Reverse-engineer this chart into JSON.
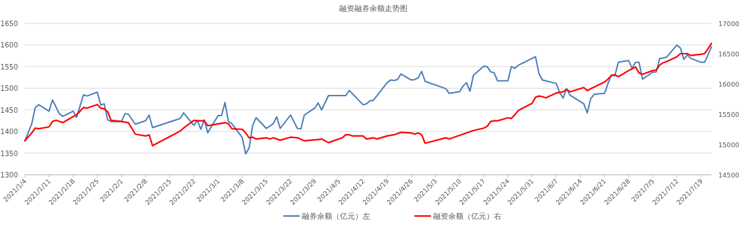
{
  "chart_data": {
    "type": "line",
    "title": "融资融券余额走势图",
    "xlim": [
      "2021-01-04",
      "2021-07-22"
    ],
    "xticks": [
      {
        "value": "2021-01-04",
        "label": "2021/1/4"
      },
      {
        "value": "2021-01-11",
        "label": "2021/1/11"
      },
      {
        "value": "2021-01-18",
        "label": "2021/1/18"
      },
      {
        "value": "2021-01-25",
        "label": "2021/1/25"
      },
      {
        "value": "2021-02-01",
        "label": "2021/2/1"
      },
      {
        "value": "2021-02-08",
        "label": "2021/2/8"
      },
      {
        "value": "2021-02-15",
        "label": "2021/2/15"
      },
      {
        "value": "2021-02-22",
        "label": "2021/2/22"
      },
      {
        "value": "2021-03-01",
        "label": "2021/3/1"
      },
      {
        "value": "2021-03-08",
        "label": "2021/3/8"
      },
      {
        "value": "2021-03-15",
        "label": "2021/3/15"
      },
      {
        "value": "2021-03-22",
        "label": "2021/3/22"
      },
      {
        "value": "2021-03-29",
        "label": "2021/3/29"
      },
      {
        "value": "2021-04-05",
        "label": "2021/4/5"
      },
      {
        "value": "2021-04-12",
        "label": "2021/4/12"
      },
      {
        "value": "2021-04-19",
        "label": "2021/4/19"
      },
      {
        "value": "2021-04-26",
        "label": "2021/4/26"
      },
      {
        "value": "2021-05-03",
        "label": "2021/5/3"
      },
      {
        "value": "2021-05-10",
        "label": "2021/5/10"
      },
      {
        "value": "2021-05-17",
        "label": "2021/5/17"
      },
      {
        "value": "2021-05-24",
        "label": "2021/5/24"
      },
      {
        "value": "2021-05-31",
        "label": "2021/5/31"
      },
      {
        "value": "2021-06-07",
        "label": "2021/6/7"
      },
      {
        "value": "2021-06-14",
        "label": "2021/6/14"
      },
      {
        "value": "2021-06-21",
        "label": "2021/6/21"
      },
      {
        "value": "2021-06-28",
        "label": "2021/6/28"
      },
      {
        "value": "2021-07-05",
        "label": "2021/7/5"
      },
      {
        "value": "2021-07-12",
        "label": "2021/7/12"
      },
      {
        "value": "2021-07-19",
        "label": "2021/7/19"
      }
    ],
    "ylim": [
      1300,
      1650
    ],
    "yticks": [
      1300,
      1350,
      1400,
      1450,
      1500,
      1550,
      1600,
      1650
    ],
    "y2lim": [
      14500,
      17000
    ],
    "y2ticks": [
      14500,
      15000,
      15500,
      16000,
      16500,
      17000
    ],
    "grid": "y",
    "legend": "bottom",
    "series": [
      {
        "name": "融券余额（亿元）左",
        "color": "#4a7ebb",
        "axis": "y",
        "x": [
          "2021-01-04",
          "2021-01-06",
          "2021-01-07",
          "2021-01-08",
          "2021-01-11",
          "2021-01-12",
          "2021-01-14",
          "2021-01-15",
          "2021-01-18",
          "2021-01-19",
          "2021-01-21",
          "2021-01-22",
          "2021-01-25",
          "2021-01-26",
          "2021-01-27",
          "2021-01-28",
          "2021-01-29",
          "2021-02-01",
          "2021-02-02",
          "2021-02-03",
          "2021-02-05",
          "2021-02-08",
          "2021-02-09",
          "2021-02-10",
          "2021-02-18",
          "2021-02-19",
          "2021-02-22",
          "2021-02-23",
          "2021-02-24",
          "2021-02-25",
          "2021-02-26",
          "2021-03-01",
          "2021-03-02",
          "2021-03-03",
          "2021-03-04",
          "2021-03-05",
          "2021-03-08",
          "2021-03-09",
          "2021-03-10",
          "2021-03-11",
          "2021-03-12",
          "2021-03-15",
          "2021-03-17",
          "2021-03-18",
          "2021-03-19",
          "2021-03-22",
          "2021-03-24",
          "2021-03-25",
          "2021-03-26",
          "2021-03-29",
          "2021-03-30",
          "2021-03-31",
          "2021-04-02",
          "2021-04-07",
          "2021-04-08",
          "2021-04-12",
          "2021-04-13",
          "2021-04-14",
          "2021-04-15",
          "2021-04-19",
          "2021-04-20",
          "2021-04-21",
          "2021-04-22",
          "2021-04-23",
          "2021-04-26",
          "2021-04-27",
          "2021-04-28",
          "2021-04-29",
          "2021-04-30",
          "2021-05-06",
          "2021-05-07",
          "2021-05-10",
          "2021-05-11",
          "2021-05-12",
          "2021-05-13",
          "2021-05-14",
          "2021-05-17",
          "2021-05-18",
          "2021-05-19",
          "2021-05-20",
          "2021-05-21",
          "2021-05-24",
          "2021-05-25",
          "2021-05-26",
          "2021-05-27",
          "2021-06-01",
          "2021-06-02",
          "2021-06-03",
          "2021-06-07",
          "2021-06-08",
          "2021-06-09",
          "2021-06-10",
          "2021-06-11",
          "2021-06-15",
          "2021-06-16",
          "2021-06-17",
          "2021-06-18",
          "2021-06-21",
          "2021-06-22",
          "2021-06-23",
          "2021-06-24",
          "2021-06-25",
          "2021-06-28",
          "2021-06-29",
          "2021-06-30",
          "2021-07-01",
          "2021-07-02",
          "2021-07-05",
          "2021-07-06",
          "2021-07-07",
          "2021-07-08",
          "2021-07-09",
          "2021-07-12",
          "2021-07-13",
          "2021-07-14",
          "2021-07-15",
          "2021-07-16",
          "2021-07-19",
          "2021-07-20",
          "2021-07-21",
          "2021-07-22"
        ],
        "values": [
          1378,
          1418,
          1455,
          1462,
          1447,
          1473,
          1441,
          1435,
          1447,
          1433,
          1485,
          1482,
          1491,
          1461,
          1464,
          1427,
          1423,
          1423,
          1441,
          1440,
          1417,
          1425,
          1438,
          1409,
          1430,
          1443,
          1414,
          1426,
          1405,
          1427,
          1397,
          1437,
          1437,
          1467,
          1423,
          1418,
          1386,
          1348,
          1362,
          1413,
          1432,
          1407,
          1418,
          1434,
          1407,
          1438,
          1407,
          1406,
          1438,
          1454,
          1466,
          1450,
          1483,
          1483,
          1495,
          1462,
          1464,
          1471,
          1472,
          1513,
          1519,
          1518,
          1520,
          1533,
          1519,
          1520,
          1524,
          1539,
          1516,
          1499,
          1488,
          1492,
          1505,
          1513,
          1493,
          1530,
          1551,
          1550,
          1538,
          1536,
          1517,
          1517,
          1550,
          1546,
          1553,
          1573,
          1534,
          1519,
          1511,
          1490,
          1477,
          1499,
          1484,
          1464,
          1443,
          1476,
          1486,
          1488,
          1511,
          1531,
          1529,
          1560,
          1564,
          1546,
          1560,
          1560,
          1521,
          1537,
          1538,
          1569,
          1570,
          1572,
          1600,
          1593,
          1567,
          1577,
          1569,
          1560,
          1560,
          1577,
          1596
        ]
      },
      {
        "name": "融资余额（亿元）右",
        "color": "#ff0000",
        "axis": "y2",
        "x": [
          "2021-01-04",
          "2021-01-06",
          "2021-01-07",
          "2021-01-08",
          "2021-01-11",
          "2021-01-12",
          "2021-01-13",
          "2021-01-15",
          "2021-01-18",
          "2021-01-19",
          "2021-01-21",
          "2021-01-22",
          "2021-01-25",
          "2021-01-26",
          "2021-01-27",
          "2021-01-28",
          "2021-01-29",
          "2021-02-01",
          "2021-02-03",
          "2021-02-05",
          "2021-02-08",
          "2021-02-09",
          "2021-02-10",
          "2021-02-18",
          "2021-02-19",
          "2021-02-22",
          "2021-02-23",
          "2021-02-25",
          "2021-02-26",
          "2021-03-01",
          "2021-03-03",
          "2021-03-04",
          "2021-03-05",
          "2021-03-08",
          "2021-03-09",
          "2021-03-10",
          "2021-03-11",
          "2021-03-12",
          "2021-03-15",
          "2021-03-16",
          "2021-03-17",
          "2021-03-19",
          "2021-03-22",
          "2021-03-24",
          "2021-03-26",
          "2021-03-30",
          "2021-03-31",
          "2021-04-02",
          "2021-04-06",
          "2021-04-07",
          "2021-04-08",
          "2021-04-09",
          "2021-04-12",
          "2021-04-13",
          "2021-04-15",
          "2021-04-16",
          "2021-04-19",
          "2021-04-21",
          "2021-04-23",
          "2021-04-26",
          "2021-04-27",
          "2021-04-28",
          "2021-04-29",
          "2021-04-30",
          "2021-05-06",
          "2021-05-07",
          "2021-05-10",
          "2021-05-11",
          "2021-05-13",
          "2021-05-14",
          "2021-05-17",
          "2021-05-18",
          "2021-05-19",
          "2021-05-20",
          "2021-05-21",
          "2021-05-24",
          "2021-05-25",
          "2021-05-26",
          "2021-05-27",
          "2021-05-28",
          "2021-05-31",
          "2021-06-01",
          "2021-06-02",
          "2021-06-03",
          "2021-06-04",
          "2021-06-07",
          "2021-06-08",
          "2021-06-09",
          "2021-06-10",
          "2021-06-11",
          "2021-06-15",
          "2021-06-16",
          "2021-06-17",
          "2021-06-21",
          "2021-06-22",
          "2021-06-23",
          "2021-06-24",
          "2021-06-25",
          "2021-06-28",
          "2021-06-29",
          "2021-06-30",
          "2021-07-01",
          "2021-07-02",
          "2021-07-05",
          "2021-07-06",
          "2021-07-07",
          "2021-07-08",
          "2021-07-09",
          "2021-07-12",
          "2021-07-13",
          "2021-07-14",
          "2021-07-15",
          "2021-07-16",
          "2021-07-19",
          "2021-07-20",
          "2021-07-21",
          "2021-07-22"
        ],
        "values": [
          15060,
          15190,
          15270,
          15260,
          15290,
          15380,
          15400,
          15360,
          15460,
          15490,
          15610,
          15600,
          15660,
          15600,
          15590,
          15540,
          15400,
          15380,
          15360,
          15170,
          15140,
          15160,
          14980,
          15220,
          15270,
          15400,
          15390,
          15390,
          15310,
          15340,
          15360,
          15340,
          15260,
          15250,
          15190,
          15110,
          15120,
          15090,
          15110,
          15090,
          15110,
          15070,
          15120,
          15110,
          15060,
          15080,
          15090,
          15030,
          15110,
          15160,
          15160,
          15140,
          15140,
          15090,
          15110,
          15090,
          15140,
          15160,
          15200,
          15190,
          15170,
          15190,
          15160,
          15020,
          15110,
          15090,
          15150,
          15170,
          15210,
          15230,
          15270,
          15300,
          15380,
          15390,
          15390,
          15440,
          15430,
          15490,
          15560,
          15590,
          15680,
          15780,
          15800,
          15790,
          15770,
          15850,
          15860,
          15870,
          15910,
          15870,
          15940,
          15890,
          15920,
          16030,
          16080,
          16140,
          16150,
          16120,
          16220,
          16250,
          16280,
          16180,
          16160,
          16220,
          16230,
          16310,
          16350,
          16370,
          16450,
          16500,
          16500,
          16500,
          16470,
          16490,
          16500,
          16580,
          16670
        ]
      }
    ]
  }
}
